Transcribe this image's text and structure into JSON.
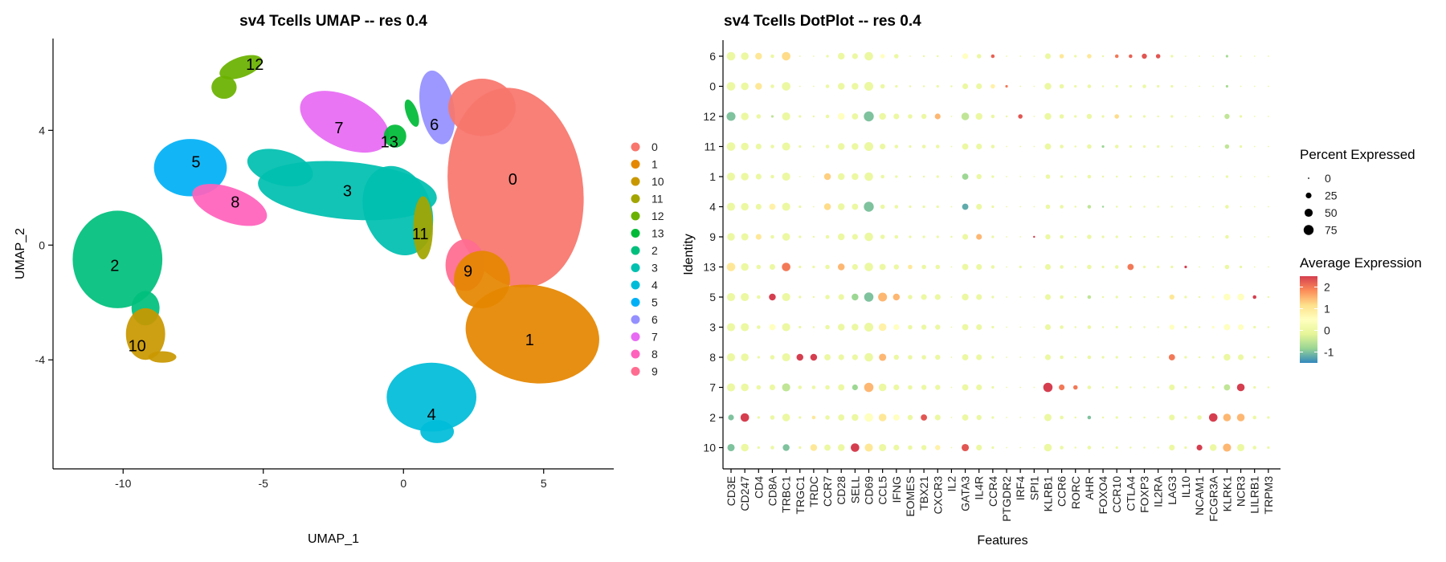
{
  "chart_data": [
    {
      "type": "scatter",
      "title": "sv4 Tcells UMAP -- res 0.4",
      "xlabel": "UMAP_1",
      "ylabel": "UMAP_2",
      "xlim": [
        -12.5,
        7.5
      ],
      "ylim": [
        -7.8,
        7.2
      ],
      "x_ticks": [
        -10,
        -5,
        0,
        5
      ],
      "x_tick_labels": [
        "-10",
        "-5",
        "0",
        "5"
      ],
      "y_ticks": [
        -4,
        0,
        4
      ],
      "y_tick_labels": [
        "-4",
        "0",
        "4"
      ],
      "grid": false,
      "legend_position": "right",
      "clusters": [
        {
          "name": "0",
          "color": "#F8766D",
          "x": 3.9,
          "y": 2.3
        },
        {
          "name": "1",
          "color": "#E58700",
          "x": 4.5,
          "y": -3.3
        },
        {
          "name": "10",
          "color": "#C99800",
          "x": -9.5,
          "y": -3.5
        },
        {
          "name": "11",
          "color": "#A3A500",
          "x": 0.6,
          "y": 0.4
        },
        {
          "name": "12",
          "color": "#6BB100",
          "x": -5.3,
          "y": 6.3
        },
        {
          "name": "13",
          "color": "#00BA38",
          "x": -0.5,
          "y": 3.6
        },
        {
          "name": "2",
          "color": "#00BF7D",
          "x": -10.3,
          "y": -0.7
        },
        {
          "name": "3",
          "color": "#00C0AF",
          "x": -2.0,
          "y": 1.9
        },
        {
          "name": "4",
          "color": "#00BCD8",
          "x": 1.0,
          "y": -5.9
        },
        {
          "name": "5",
          "color": "#00B0F6",
          "x": -7.4,
          "y": 2.9
        },
        {
          "name": "6",
          "color": "#9590FF",
          "x": 1.1,
          "y": 4.2
        },
        {
          "name": "7",
          "color": "#E76BF3",
          "x": -2.3,
          "y": 4.1
        },
        {
          "name": "8",
          "color": "#FF62BC",
          "x": -6.0,
          "y": 1.5
        },
        {
          "name": "9",
          "color": "#FF6C91",
          "x": 2.3,
          "y": -0.9
        }
      ]
    },
    {
      "type": "dotplot",
      "title": "sv4 Tcells DotPlot -- res 0.4",
      "xlabel": "Features",
      "ylabel": "Identity",
      "features": [
        "CD3E",
        "CD247",
        "CD4",
        "CD8A",
        "TRBC1",
        "TRGC1",
        "TRDC",
        "CCR7",
        "CD28",
        "SELL",
        "CD69",
        "CCL5",
        "IFNG",
        "EOMES",
        "TBX21",
        "CXCR3",
        "IL2",
        "GATA3",
        "IL4R",
        "CCR4",
        "PTGDR2",
        "IRF4",
        "SPI1",
        "KLRB1",
        "CCR6",
        "RORC",
        "AHR",
        "FOXO4",
        "CCR10",
        "CTLA4",
        "FOXP3",
        "IL2RA",
        "LAG3",
        "IL10",
        "NCAM1",
        "FCGR3A",
        "KLRK1",
        "NCR3",
        "LILRB1",
        "TRPM3"
      ],
      "identities": [
        "6",
        "0",
        "12",
        "11",
        "1",
        "4",
        "9",
        "13",
        "5",
        "3",
        "8",
        "7",
        "2",
        "10"
      ],
      "size_legend": {
        "title": "Percent Expressed",
        "values": [
          0,
          25,
          50,
          75
        ],
        "labels": [
          "0",
          "25",
          "50",
          "75"
        ]
      },
      "color_legend": {
        "title": "Average Expression",
        "range": [
          -1.5,
          2.5
        ],
        "ticks": [
          2,
          1,
          0,
          -1
        ],
        "tick_labels": [
          "2",
          "1",
          "0",
          "-1"
        ],
        "colors": [
          "#D53E4F",
          "#FC8D59",
          "#FEE08B",
          "#FFFFBF",
          "#E6F598",
          "#99D594",
          "#3288BD"
        ]
      },
      "pct": [
        [
          55,
          45,
          35,
          10,
          55,
          0,
          0,
          5,
          35,
          25,
          55,
          15,
          15,
          0,
          3,
          3,
          0,
          25,
          15,
          10,
          0,
          0,
          0,
          25,
          15,
          5,
          15,
          3,
          10,
          10,
          20,
          15,
          5,
          0,
          0,
          0,
          5,
          0,
          0,
          0
        ],
        [
          55,
          45,
          35,
          10,
          55,
          0,
          0,
          10,
          35,
          35,
          60,
          15,
          5,
          3,
          3,
          5,
          3,
          25,
          25,
          15,
          5,
          0,
          0,
          35,
          15,
          5,
          10,
          3,
          5,
          5,
          10,
          5,
          5,
          0,
          0,
          0,
          5,
          0,
          0,
          0
        ],
        [
          60,
          45,
          15,
          5,
          50,
          5,
          3,
          10,
          35,
          30,
          75,
          35,
          25,
          15,
          20,
          25,
          0,
          45,
          35,
          10,
          3,
          15,
          0,
          35,
          15,
          5,
          20,
          5,
          15,
          5,
          5,
          3,
          5,
          0,
          0,
          0,
          20,
          5,
          0,
          0
        ],
        [
          55,
          45,
          25,
          10,
          50,
          5,
          3,
          10,
          35,
          35,
          60,
          25,
          10,
          5,
          10,
          10,
          0,
          30,
          25,
          10,
          0,
          0,
          0,
          30,
          10,
          3,
          15,
          5,
          10,
          5,
          5,
          5,
          3,
          0,
          0,
          0,
          15,
          5,
          0,
          0
        ],
        [
          50,
          45,
          25,
          10,
          50,
          0,
          0,
          35,
          35,
          35,
          55,
          10,
          5,
          3,
          3,
          5,
          0,
          30,
          20,
          5,
          0,
          0,
          0,
          15,
          5,
          3,
          10,
          3,
          3,
          3,
          3,
          3,
          3,
          0,
          0,
          0,
          5,
          0,
          0,
          0
        ],
        [
          50,
          45,
          25,
          30,
          50,
          5,
          0,
          35,
          35,
          30,
          75,
          15,
          10,
          5,
          5,
          5,
          0,
          30,
          25,
          5,
          0,
          0,
          0,
          15,
          10,
          3,
          10,
          3,
          3,
          3,
          3,
          3,
          3,
          0,
          0,
          0,
          10,
          0,
          0,
          0
        ],
        [
          45,
          40,
          25,
          10,
          45,
          5,
          3,
          10,
          35,
          25,
          55,
          15,
          10,
          5,
          5,
          5,
          3,
          25,
          25,
          5,
          0,
          0,
          3,
          20,
          10,
          3,
          15,
          5,
          5,
          3,
          3,
          3,
          3,
          0,
          0,
          0,
          10,
          0,
          0,
          0
        ],
        [
          55,
          45,
          15,
          25,
          55,
          5,
          5,
          15,
          35,
          25,
          55,
          30,
          20,
          15,
          15,
          15,
          0,
          30,
          25,
          10,
          0,
          5,
          0,
          25,
          10,
          3,
          15,
          5,
          10,
          30,
          5,
          5,
          5,
          5,
          0,
          0,
          15,
          5,
          0,
          0
        ],
        [
          50,
          50,
          10,
          35,
          50,
          5,
          3,
          15,
          25,
          35,
          65,
          60,
          35,
          15,
          25,
          25,
          0,
          35,
          25,
          5,
          0,
          0,
          0,
          25,
          10,
          3,
          10,
          3,
          5,
          3,
          3,
          3,
          20,
          5,
          3,
          5,
          35,
          35,
          10,
          3
        ],
        [
          50,
          50,
          10,
          30,
          50,
          5,
          3,
          15,
          35,
          35,
          60,
          45,
          25,
          15,
          20,
          20,
          0,
          30,
          25,
          5,
          0,
          0,
          0,
          25,
          10,
          3,
          10,
          3,
          5,
          3,
          3,
          3,
          20,
          5,
          3,
          5,
          30,
          25,
          5,
          3
        ],
        [
          50,
          45,
          5,
          15,
          50,
          35,
          35,
          30,
          25,
          25,
          55,
          40,
          20,
          15,
          15,
          20,
          0,
          30,
          25,
          5,
          0,
          0,
          0,
          25,
          10,
          3,
          10,
          5,
          5,
          3,
          3,
          3,
          30,
          5,
          3,
          5,
          35,
          25,
          5,
          3
        ],
        [
          50,
          45,
          15,
          25,
          50,
          10,
          10,
          15,
          30,
          25,
          65,
          45,
          25,
          15,
          20,
          20,
          0,
          30,
          25,
          5,
          0,
          0,
          0,
          65,
          25,
          15,
          10,
          3,
          5,
          3,
          3,
          3,
          25,
          5,
          3,
          5,
          30,
          45,
          5,
          3
        ],
        [
          25,
          55,
          5,
          15,
          45,
          5,
          10,
          15,
          30,
          35,
          55,
          45,
          30,
          20,
          30,
          25,
          0,
          30,
          20,
          5,
          0,
          0,
          0,
          40,
          10,
          3,
          10,
          3,
          5,
          3,
          3,
          3,
          25,
          5,
          15,
          55,
          45,
          45,
          10,
          5
        ],
        [
          40,
          45,
          5,
          10,
          35,
          5,
          35,
          30,
          35,
          55,
          50,
          40,
          25,
          15,
          20,
          20,
          0,
          40,
          25,
          5,
          0,
          0,
          0,
          45,
          10,
          3,
          10,
          3,
          5,
          3,
          3,
          3,
          25,
          5,
          25,
          35,
          50,
          40,
          10,
          5
        ]
      ],
      "avg": [
        [
          0,
          0,
          1,
          0,
          1.2,
          0,
          0,
          0,
          0,
          0,
          0,
          0.5,
          0,
          0,
          0,
          0,
          0,
          0.5,
          0,
          2.2,
          0,
          0,
          0,
          0,
          1,
          0,
          1,
          0,
          2,
          2.2,
          2.3,
          2.3,
          0,
          0,
          0,
          0,
          -0.7,
          0,
          0,
          0
        ],
        [
          0,
          0,
          1,
          0,
          0,
          0,
          0,
          0,
          0,
          0,
          0,
          0,
          0,
          0,
          0,
          0,
          0,
          0,
          0,
          0.8,
          2,
          0,
          0,
          0,
          0,
          0,
          0,
          0,
          0,
          0,
          0,
          0,
          0,
          0,
          0,
          0,
          -0.7,
          0,
          0,
          0
        ],
        [
          -1,
          0,
          0,
          -0.5,
          0,
          0,
          0,
          0,
          0.5,
          0,
          -1,
          0,
          0,
          0,
          0,
          1.5,
          0,
          -0.5,
          0,
          0,
          0,
          2.3,
          0,
          0,
          0,
          0,
          0,
          0,
          1.2,
          0,
          0,
          0,
          0,
          0,
          0,
          0,
          -0.5,
          0,
          0,
          0
        ],
        [
          0,
          0,
          0,
          0,
          0,
          0,
          0,
          0,
          0,
          0,
          0,
          0,
          0,
          0,
          0,
          0,
          0,
          0,
          0,
          0,
          0,
          0,
          0,
          0,
          0,
          0,
          0,
          -0.8,
          0,
          0,
          0,
          0,
          0,
          0,
          0,
          0,
          -0.5,
          0,
          0,
          0
        ],
        [
          0,
          0,
          0,
          0,
          0,
          0,
          0,
          1.3,
          0,
          0,
          0,
          0,
          0,
          0,
          0,
          0,
          0,
          -0.8,
          0,
          0,
          0,
          0,
          0,
          0,
          0,
          0,
          0,
          0,
          0,
          0,
          0,
          0,
          0,
          0,
          0,
          0,
          0,
          0,
          0,
          0
        ],
        [
          0,
          0,
          0,
          0.8,
          0,
          0,
          0,
          1.2,
          0,
          0,
          -1,
          0,
          0,
          0,
          0,
          0,
          0,
          -1.2,
          0,
          0,
          0,
          0,
          0,
          0,
          0,
          0,
          -0.5,
          -0.8,
          0,
          0,
          0,
          0,
          0,
          0,
          0,
          0,
          0,
          0,
          0,
          0
        ],
        [
          0,
          0,
          1,
          0,
          0,
          0,
          0,
          0,
          0,
          0,
          0,
          0,
          0,
          0,
          0,
          0,
          0,
          0,
          1.5,
          0,
          0,
          0,
          2.5,
          0,
          0,
          0,
          0,
          0,
          0,
          0,
          0,
          0,
          0,
          0,
          0,
          0,
          0,
          0,
          0,
          0
        ],
        [
          1,
          0,
          0,
          0,
          2,
          0,
          0,
          0,
          1.5,
          0,
          0,
          0,
          0,
          1,
          0,
          0,
          0,
          0,
          0,
          0,
          0,
          0,
          0,
          0,
          0,
          0,
          0,
          0,
          0,
          2,
          0,
          0,
          0,
          2.5,
          0,
          0,
          0,
          0,
          0,
          0
        ],
        [
          0,
          0,
          0,
          2.5,
          0,
          0,
          0,
          0,
          0,
          -0.8,
          -1,
          1.5,
          1.5,
          0,
          0,
          0,
          0,
          0,
          0,
          0,
          0,
          0,
          0,
          0,
          0,
          0,
          -0.5,
          0,
          0,
          0,
          0,
          0,
          1,
          0,
          0,
          0.5,
          0.5,
          0.5,
          2.5,
          0
        ],
        [
          0,
          0,
          0,
          0.5,
          0,
          0,
          0,
          0,
          0,
          0,
          0,
          0.8,
          0.5,
          0,
          0,
          0,
          0,
          0,
          0,
          0,
          0,
          0,
          0,
          0,
          0,
          0,
          0,
          0,
          0,
          0,
          0,
          0,
          0.5,
          0,
          0,
          0.5,
          0.5,
          0.5,
          0,
          0
        ],
        [
          0,
          0,
          0,
          0,
          0,
          2.5,
          2.5,
          0,
          0,
          0,
          0,
          1.5,
          0,
          0,
          0,
          0,
          0,
          0,
          0,
          0,
          0,
          0,
          0,
          0,
          0,
          0,
          0,
          0,
          0,
          0,
          0,
          0,
          2,
          0,
          0,
          0,
          0,
          0,
          0,
          0
        ],
        [
          0,
          0,
          0,
          0,
          -0.5,
          0,
          0,
          0,
          0,
          -0.8,
          1.5,
          0,
          0,
          0,
          0,
          0,
          0,
          0,
          0,
          0,
          0,
          0,
          0,
          2.5,
          2,
          2,
          0,
          0,
          0,
          0,
          0,
          0,
          0,
          0,
          0,
          0,
          -0.5,
          2.5,
          0,
          0
        ],
        [
          -1,
          2.5,
          0,
          0,
          0,
          0,
          1,
          0,
          0,
          0,
          0.5,
          1,
          0.5,
          0,
          2.3,
          0,
          0,
          0,
          0,
          0,
          0,
          0,
          0,
          0,
          0,
          0,
          -1,
          0,
          0,
          0,
          0,
          0,
          0,
          0,
          0,
          2.5,
          1.5,
          1.5,
          0,
          0
        ],
        [
          -1,
          0,
          0,
          0,
          -1,
          0,
          1,
          0,
          0,
          2.5,
          1,
          0,
          0,
          0,
          0,
          0.8,
          0,
          2.3,
          0,
          0,
          0,
          0,
          0,
          0,
          0,
          0,
          0,
          0,
          0,
          0,
          0,
          0,
          0,
          0,
          2.5,
          0,
          1.5,
          0,
          0,
          0
        ]
      ]
    }
  ]
}
